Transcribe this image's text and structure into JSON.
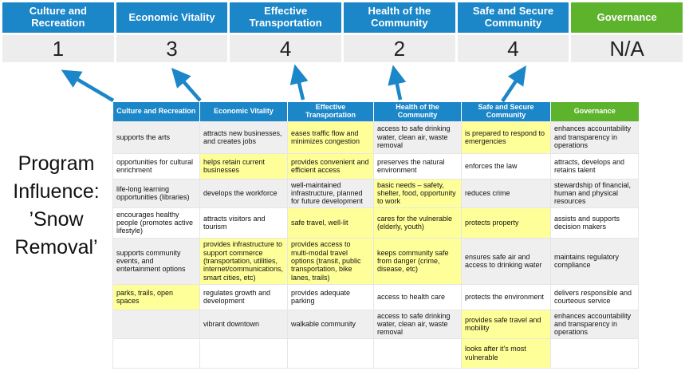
{
  "colors": {
    "blue": "#1B86C8",
    "green": "#5EB32D",
    "yellow": "#FFFF99",
    "stripe": "#EFEFEF",
    "score_bg": "#EDEDED",
    "arrow": "#1B86C8"
  },
  "title": "Program\nInfluence:\n’Snow\nRemoval’",
  "scoreboard": [
    {
      "label": "Culture and Recreation",
      "score": "1",
      "theme": "blue"
    },
    {
      "label": "Economic Vitality",
      "score": "3",
      "theme": "blue"
    },
    {
      "label": "Effective Transportation",
      "score": "4",
      "theme": "blue"
    },
    {
      "label": "Health of the Community",
      "score": "2",
      "theme": "blue"
    },
    {
      "label": "Safe and Secure Community",
      "score": "4",
      "theme": "blue"
    },
    {
      "label": "Governance",
      "score": "N/A",
      "theme": "green"
    }
  ],
  "matrix": {
    "columns": [
      {
        "label": "Culture and Recreation",
        "theme": "blue"
      },
      {
        "label": "Economic Vitality",
        "theme": "blue"
      },
      {
        "label": "Effective Transportation",
        "theme": "blue"
      },
      {
        "label": "Health of the Community",
        "theme": "blue"
      },
      {
        "label": "Safe and Secure Community",
        "theme": "blue"
      },
      {
        "label": "Governance",
        "theme": "green"
      }
    ],
    "rows": [
      {
        "cells": [
          {
            "text": "supports the arts",
            "hl": false
          },
          {
            "text": "attracts new businesses, and creates jobs",
            "hl": false
          },
          {
            "text": "eases traffic flow and minimizes congestion",
            "hl": true
          },
          {
            "text": "access to safe drinking water, clean air, waste removal",
            "hl": false
          },
          {
            "text": "is prepared to respond to emergencies",
            "hl": true
          },
          {
            "text": "enhances accountability and transparency in operations",
            "hl": false
          }
        ]
      },
      {
        "cells": [
          {
            "text": "opportunities for cultural enrichment",
            "hl": false
          },
          {
            "text": "helps retain current businesses",
            "hl": true
          },
          {
            "text": "provides convenient and efficient access",
            "hl": true
          },
          {
            "text": "preserves the natural environment",
            "hl": false
          },
          {
            "text": "enforces the law",
            "hl": false
          },
          {
            "text": "attracts, develops and retains talent",
            "hl": false
          }
        ]
      },
      {
        "cells": [
          {
            "text": "life-long learning opportunities (libraries)",
            "hl": false
          },
          {
            "text": "develops the workforce",
            "hl": false
          },
          {
            "text": "well-maintained infrastructure, planned for future development",
            "hl": false
          },
          {
            "text": "basic needs – safety, shelter, food, opportunity to work",
            "hl": true
          },
          {
            "text": "reduces crime",
            "hl": false
          },
          {
            "text": "stewardship of financial, human and physical resources",
            "hl": false
          }
        ]
      },
      {
        "cells": [
          {
            "text": "encourages healthy people (promotes active lifestyle)",
            "hl": false
          },
          {
            "text": "attracts visitors and tourism",
            "hl": false
          },
          {
            "text": "safe travel, well-lit",
            "hl": true
          },
          {
            "text": "cares for the vulnerable (elderly, youth)",
            "hl": true
          },
          {
            "text": "protects property",
            "hl": true
          },
          {
            "text": "assists and supports decision makers",
            "hl": false
          }
        ]
      },
      {
        "cells": [
          {
            "text": "supports community events, and entertainment options",
            "hl": false
          },
          {
            "text": "provides infrastructure to support commerce (transportation, utilities, internet/communications, smart cities, etc)",
            "hl": true
          },
          {
            "text": "provides access to multi-modal travel options (transit, public transportation, bike lanes, trails)",
            "hl": true
          },
          {
            "text": "keeps community safe from danger (crime, disease, etc)",
            "hl": true
          },
          {
            "text": "ensures safe air and access to drinking water",
            "hl": false
          },
          {
            "text": "maintains regulatory compliance",
            "hl": false
          }
        ]
      },
      {
        "cells": [
          {
            "text": "parks, trails, open spaces",
            "hl": true
          },
          {
            "text": "regulates growth and development",
            "hl": false
          },
          {
            "text": "provides adequate parking",
            "hl": false
          },
          {
            "text": "access to health care",
            "hl": false
          },
          {
            "text": "protects the environment",
            "hl": false
          },
          {
            "text": "delivers responsible and courteous service",
            "hl": false
          }
        ]
      },
      {
        "cells": [
          {
            "text": "",
            "hl": false
          },
          {
            "text": "vibrant downtown",
            "hl": false
          },
          {
            "text": "walkable community",
            "hl": false
          },
          {
            "text": "access to safe drinking water, clean air, waste removal",
            "hl": false
          },
          {
            "text": "provides safe travel and mobility",
            "hl": true
          },
          {
            "text": "enhances accountability and transparency in operations",
            "hl": false
          }
        ]
      },
      {
        "cells": [
          {
            "text": "",
            "hl": false
          },
          {
            "text": "",
            "hl": false
          },
          {
            "text": "",
            "hl": false
          },
          {
            "text": "",
            "hl": false
          },
          {
            "text": "looks after it's most vulnerable",
            "hl": true
          },
          {
            "text": "",
            "hl": false
          }
        ]
      }
    ]
  }
}
